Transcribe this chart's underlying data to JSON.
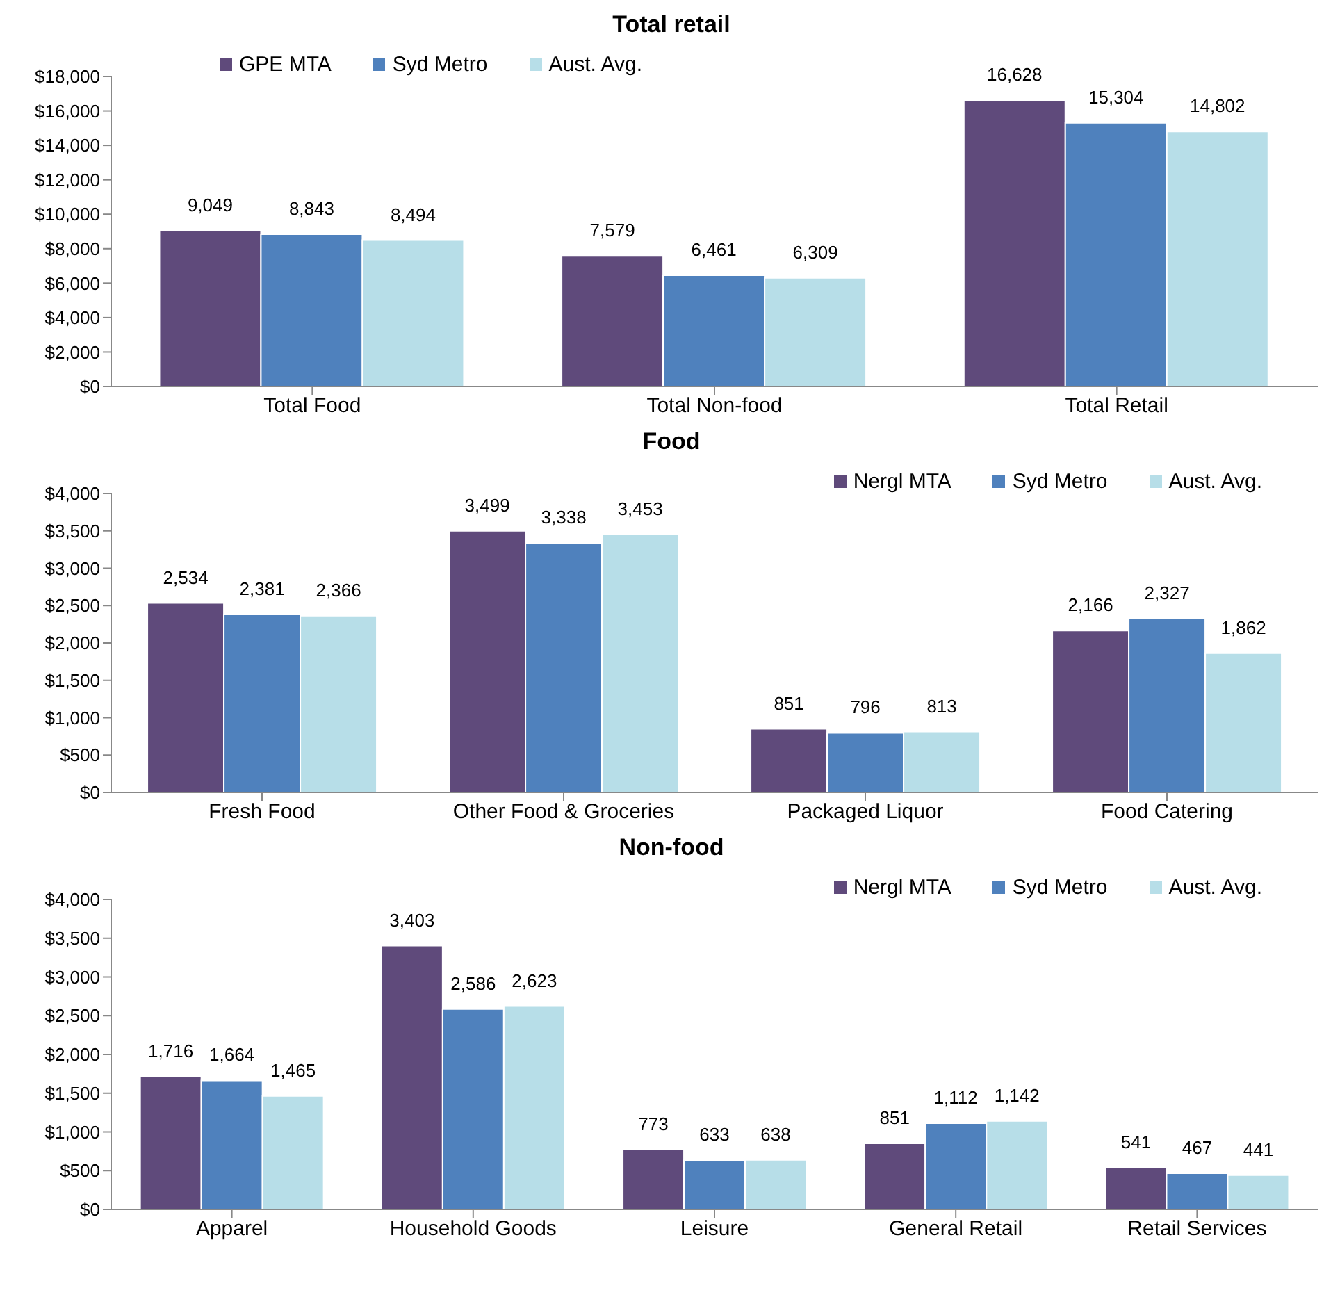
{
  "chart_data": [
    {
      "type": "bar",
      "title": "Total retail",
      "categories": [
        "Total Food",
        "Total Non-food",
        "Total Retail"
      ],
      "series": [
        {
          "name": "GPE MTA",
          "color": "#5f4a7b",
          "values": [
            9049,
            7579,
            16628
          ],
          "value_labels": [
            "9,049",
            "7,579",
            "16,628"
          ]
        },
        {
          "name": "Syd Metro",
          "color": "#4f81bd",
          "values": [
            8843,
            6461,
            15304
          ],
          "value_labels": [
            "8,843",
            "6,461",
            "15,304"
          ]
        },
        {
          "name": "Aust. Avg.",
          "color": "#b7dee8",
          "values": [
            8494,
            6309,
            14802
          ],
          "value_labels": [
            "8,494",
            "6,309",
            "14,802"
          ]
        }
      ],
      "ylim": [
        0,
        18000
      ],
      "yticks": [
        {
          "value": 0,
          "label": "$0"
        },
        {
          "value": 2000,
          "label": "$2,000"
        },
        {
          "value": 4000,
          "label": "$4,000"
        },
        {
          "value": 6000,
          "label": "$6,000"
        },
        {
          "value": 8000,
          "label": "$8,000"
        },
        {
          "value": 10000,
          "label": "$10,000"
        },
        {
          "value": 12000,
          "label": "$12,000"
        },
        {
          "value": 14000,
          "label": "$14,000"
        },
        {
          "value": 16000,
          "label": "$16,000"
        },
        {
          "value": 18000,
          "label": "$18,000"
        }
      ],
      "grid": false,
      "legend": "top left"
    },
    {
      "type": "bar",
      "title": "Food",
      "categories": [
        "Fresh Food",
        "Other Food & Groceries",
        "Packaged Liquor",
        "Food Catering"
      ],
      "series": [
        {
          "name": "Nergl MTA",
          "color": "#5f4a7b",
          "values": [
            2534,
            3499,
            851,
            2166
          ],
          "value_labels": [
            "2,534",
            "3,499",
            "851",
            "2,166"
          ]
        },
        {
          "name": "Syd Metro",
          "color": "#4f81bd",
          "values": [
            2381,
            3338,
            796,
            2327
          ],
          "value_labels": [
            "2,381",
            "3,338",
            "796",
            "2,327"
          ]
        },
        {
          "name": "Aust. Avg.",
          "color": "#b7dee8",
          "values": [
            2366,
            3453,
            813,
            1862
          ],
          "value_labels": [
            "2,366",
            "3,453",
            "813",
            "1,862"
          ]
        }
      ],
      "ylim": [
        0,
        4000
      ],
      "yticks": [
        {
          "value": 0,
          "label": "$0"
        },
        {
          "value": 500,
          "label": "$500"
        },
        {
          "value": 1000,
          "label": "$1,000"
        },
        {
          "value": 1500,
          "label": "$1,500"
        },
        {
          "value": 2000,
          "label": "$2,000"
        },
        {
          "value": 2500,
          "label": "$2,500"
        },
        {
          "value": 3000,
          "label": "$3,000"
        },
        {
          "value": 3500,
          "label": "$3,500"
        },
        {
          "value": 4000,
          "label": "$4,000"
        }
      ],
      "grid": false,
      "legend": "top right"
    },
    {
      "type": "bar",
      "title": "Non-food",
      "categories": [
        "Apparel",
        "Household Goods",
        "Leisure",
        "General Retail",
        "Retail Services"
      ],
      "series": [
        {
          "name": "Nergl MTA",
          "color": "#5f4a7b",
          "values": [
            1716,
            3403,
            773,
            851,
            541
          ],
          "value_labels": [
            "1,716",
            "3,403",
            "773",
            "851",
            "541"
          ]
        },
        {
          "name": "Syd Metro",
          "color": "#4f81bd",
          "values": [
            1664,
            2586,
            633,
            1112,
            467
          ],
          "value_labels": [
            "1,664",
            "2,586",
            "633",
            "1,112",
            "467"
          ]
        },
        {
          "name": "Aust. Avg.",
          "color": "#b7dee8",
          "values": [
            1465,
            2623,
            638,
            1142,
            441
          ],
          "value_labels": [
            "1,465",
            "2,623",
            "638",
            "1,142",
            "441"
          ]
        }
      ],
      "ylim": [
        0,
        4000
      ],
      "yticks": [
        {
          "value": 0,
          "label": "$0"
        },
        {
          "value": 500,
          "label": "$500"
        },
        {
          "value": 1000,
          "label": "$1,000"
        },
        {
          "value": 1500,
          "label": "$1,500"
        },
        {
          "value": 2000,
          "label": "$2,000"
        },
        {
          "value": 2500,
          "label": "$2,500"
        },
        {
          "value": 3000,
          "label": "$3,000"
        },
        {
          "value": 3500,
          "label": "$3,500"
        },
        {
          "value": 4000,
          "label": "$4,000"
        }
      ],
      "grid": false,
      "legend": "top right"
    }
  ]
}
